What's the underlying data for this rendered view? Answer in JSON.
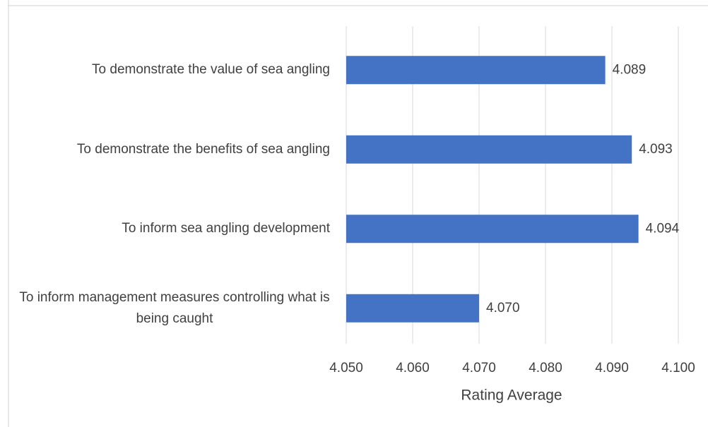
{
  "chart_data": {
    "type": "bar",
    "orientation": "horizontal",
    "categories": [
      "To demonstrate the value of sea angling",
      "To demonstrate the benefits of sea angling",
      "To inform sea angling development",
      "To inform management measures controlling what is being caught"
    ],
    "values": [
      4.089,
      4.093,
      4.094,
      4.07
    ],
    "value_labels": [
      "4.089",
      "4.093",
      "4.094",
      "4.070"
    ],
    "color": "#4472c4",
    "x_label": "Rating Average",
    "xlim": [
      4.05,
      4.1
    ],
    "xticks": [
      {
        "value": 4.05,
        "label": "4.050"
      },
      {
        "value": 4.06,
        "label": "4.060"
      },
      {
        "value": 4.07,
        "label": "4.070"
      },
      {
        "value": 4.08,
        "label": "4.080"
      },
      {
        "value": 4.09,
        "label": "4.090"
      },
      {
        "value": 4.1,
        "label": "4.100"
      }
    ],
    "grid": true
  }
}
